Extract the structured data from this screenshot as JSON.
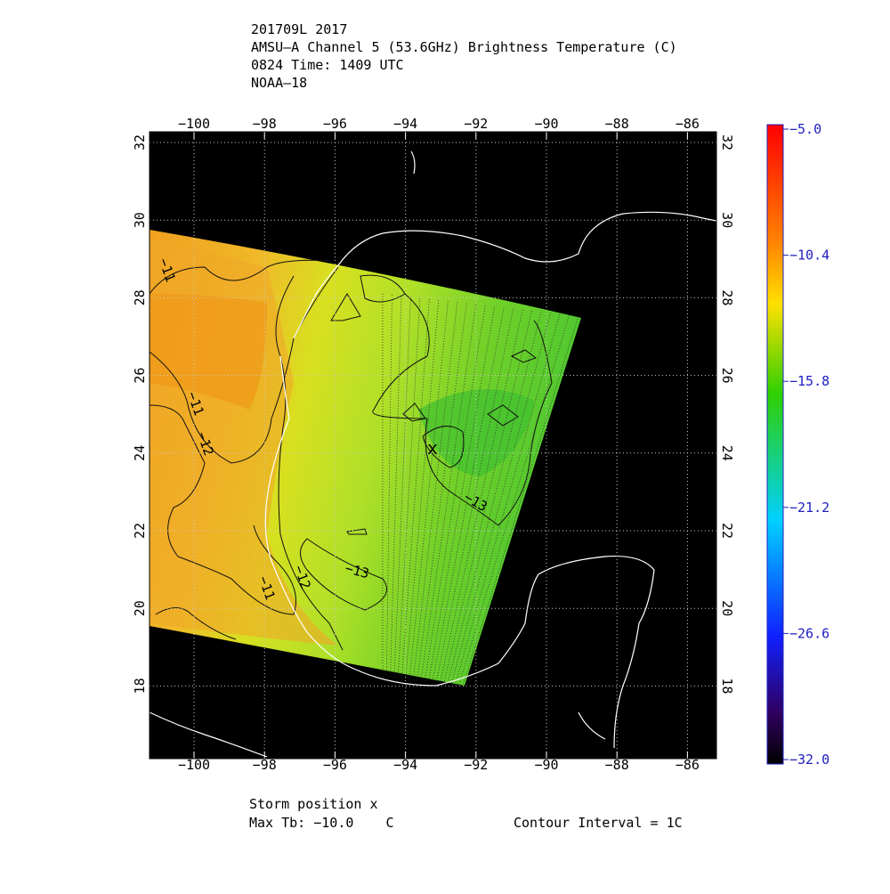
{
  "header": {
    "lines": [
      "201709L 2017",
      "AMSU–A Channel 5 (53.6GHz) Brightness Temperature (C)",
      "0824 Time: 1409 UTC",
      "NOAA–18"
    ]
  },
  "map": {
    "lon_labels": [
      "−100",
      "−98",
      "−96",
      "−94",
      "−92",
      "−90",
      "−88",
      "−86"
    ],
    "lat_labels": [
      "32",
      "30",
      "28",
      "26",
      "24",
      "22",
      "20",
      "18"
    ],
    "contour_labels": [
      "−11",
      "−11",
      "−12",
      "−12",
      "−11",
      "−13",
      "−13"
    ],
    "storm_marker": "x"
  },
  "colorbar": {
    "labels": [
      "−5.0",
      "−10.4",
      "−15.8",
      "−21.2",
      "−26.6",
      "−32.0"
    ]
  },
  "footer": {
    "storm_position": "Storm position x",
    "max_tb": "Max Tb: −10.0    C",
    "contour_interval": "Contour Interval = 1C"
  }
}
